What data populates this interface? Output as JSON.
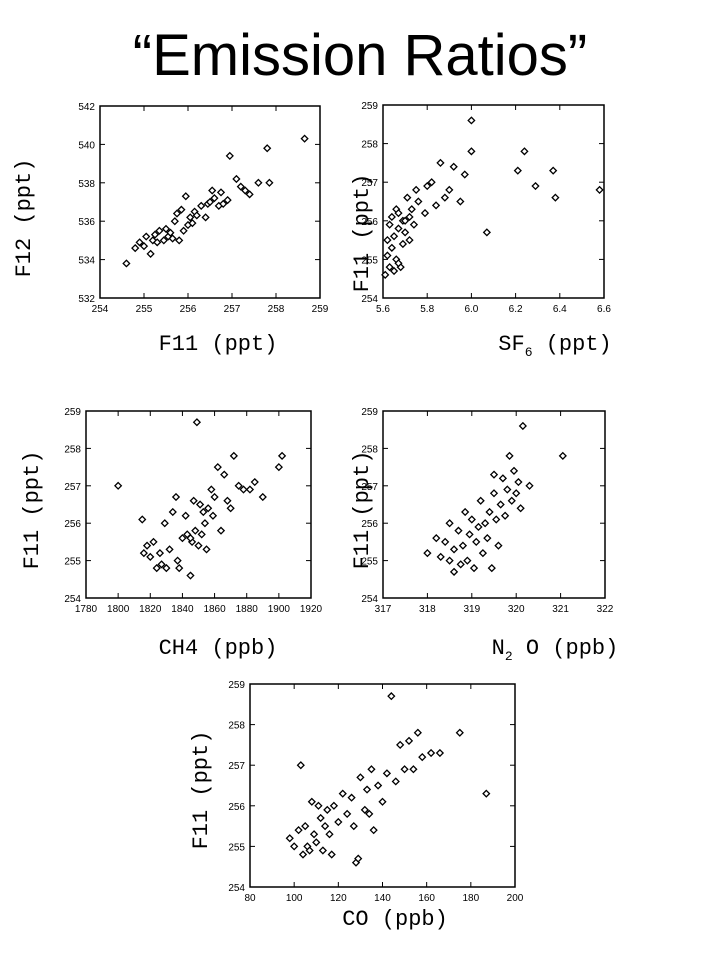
{
  "title": "“Emission Ratios”",
  "chart_data": [
    {
      "type": "scatter",
      "xlabel": "F11 (ppt)",
      "ylabel": "F12 (ppt)",
      "xlim": [
        254,
        259
      ],
      "ylim": [
        532,
        542
      ],
      "xticks": [
        "254",
        "255",
        "256",
        "257",
        "258",
        "259"
      ],
      "yticks": [
        "532",
        "534",
        "536",
        "538",
        "540",
        "542"
      ],
      "points": [
        [
          254.6,
          533.8
        ],
        [
          254.8,
          534.6
        ],
        [
          254.9,
          534.9
        ],
        [
          255.0,
          534.7
        ],
        [
          255.05,
          535.2
        ],
        [
          255.15,
          534.3
        ],
        [
          255.2,
          535.0
        ],
        [
          255.3,
          534.9
        ],
        [
          255.35,
          535.5
        ],
        [
          255.45,
          535.0
        ],
        [
          255.5,
          535.6
        ],
        [
          255.55,
          535.2
        ],
        [
          255.6,
          535.4
        ],
        [
          255.65,
          535.1
        ],
        [
          255.7,
          536.0
        ],
        [
          255.75,
          536.4
        ],
        [
          255.8,
          535.0
        ],
        [
          255.9,
          535.5
        ],
        [
          256.0,
          535.8
        ],
        [
          256.05,
          536.2
        ],
        [
          256.1,
          535.9
        ],
        [
          256.15,
          536.5
        ],
        [
          256.2,
          536.3
        ],
        [
          256.3,
          536.8
        ],
        [
          256.4,
          536.2
        ],
        [
          256.45,
          536.9
        ],
        [
          256.5,
          537.0
        ],
        [
          256.6,
          537.2
        ],
        [
          256.7,
          536.8
        ],
        [
          256.75,
          537.5
        ],
        [
          256.8,
          536.9
        ],
        [
          256.9,
          537.1
        ],
        [
          256.95,
          539.4
        ],
        [
          257.1,
          538.2
        ],
        [
          257.2,
          537.8
        ],
        [
          257.3,
          537.6
        ],
        [
          257.4,
          537.4
        ],
        [
          257.6,
          538.0
        ],
        [
          257.8,
          539.8
        ],
        [
          257.85,
          538.0
        ],
        [
          258.65,
          540.3
        ],
        [
          255.95,
          537.3
        ],
        [
          256.55,
          537.6
        ],
        [
          255.25,
          535.3
        ],
        [
          255.85,
          536.6
        ]
      ]
    },
    {
      "type": "scatter",
      "xlabel": "SF",
      "xlabel_sub": "6",
      "xlabel_unit": "(ppt)",
      "ylabel": "F11 (ppt)",
      "xlim": [
        5.6,
        6.6
      ],
      "ylim": [
        254,
        259
      ],
      "xticks": [
        "5.6",
        "5.8",
        "6.0",
        "6.2",
        "6.4",
        "6.6"
      ],
      "yticks": [
        "254",
        "255",
        "256",
        "257",
        "258",
        "259"
      ],
      "points": [
        [
          5.61,
          254.6
        ],
        [
          5.62,
          255.1
        ],
        [
          5.62,
          255.5
        ],
        [
          5.63,
          254.8
        ],
        [
          5.63,
          255.9
        ],
        [
          5.64,
          255.3
        ],
        [
          5.64,
          256.1
        ],
        [
          5.65,
          254.7
        ],
        [
          5.65,
          255.6
        ],
        [
          5.66,
          256.3
        ],
        [
          5.66,
          255.0
        ],
        [
          5.67,
          255.8
        ],
        [
          5.67,
          256.2
        ],
        [
          5.68,
          254.8
        ],
        [
          5.69,
          255.4
        ],
        [
          5.69,
          256.0
        ],
        [
          5.7,
          255.7
        ],
        [
          5.71,
          256.6
        ],
        [
          5.72,
          255.5
        ],
        [
          5.73,
          256.3
        ],
        [
          5.74,
          255.9
        ],
        [
          5.75,
          256.8
        ],
        [
          5.76,
          256.5
        ],
        [
          5.79,
          256.2
        ],
        [
          5.8,
          256.9
        ],
        [
          5.82,
          257.0
        ],
        [
          5.84,
          256.4
        ],
        [
          5.86,
          257.5
        ],
        [
          5.88,
          256.6
        ],
        [
          5.9,
          256.8
        ],
        [
          5.92,
          257.4
        ],
        [
          5.95,
          256.5
        ],
        [
          5.97,
          257.2
        ],
        [
          6.0,
          258.6
        ],
        [
          6.0,
          257.8
        ],
        [
          6.07,
          255.7
        ],
        [
          6.21,
          257.3
        ],
        [
          6.24,
          257.8
        ],
        [
          6.29,
          256.9
        ],
        [
          6.37,
          257.3
        ],
        [
          6.38,
          256.6
        ],
        [
          6.58,
          256.8
        ],
        [
          5.67,
          254.9
        ],
        [
          5.7,
          256.0
        ],
        [
          5.72,
          256.1
        ]
      ]
    },
    {
      "type": "scatter",
      "xlabel": "CH4 (ppb)",
      "ylabel": "F11 (ppt)",
      "xlim": [
        1780,
        1920
      ],
      "ylim": [
        254,
        259
      ],
      "xticks": [
        "1780",
        "1800",
        "1820",
        "1840",
        "1860",
        "1880",
        "1900",
        "1920"
      ],
      "yticks": [
        "254",
        "255",
        "256",
        "257",
        "258",
        "259"
      ],
      "points": [
        [
          1800,
          257.0
        ],
        [
          1815,
          256.1
        ],
        [
          1816,
          255.2
        ],
        [
          1818,
          255.4
        ],
        [
          1820,
          255.1
        ],
        [
          1822,
          255.5
        ],
        [
          1824,
          254.8
        ],
        [
          1826,
          255.2
        ],
        [
          1827,
          254.9
        ],
        [
          1829,
          256.0
        ],
        [
          1830,
          254.8
        ],
        [
          1832,
          255.3
        ],
        [
          1834,
          256.3
        ],
        [
          1836,
          256.7
        ],
        [
          1837,
          255.0
        ],
        [
          1838,
          254.8
        ],
        [
          1840,
          255.6
        ],
        [
          1842,
          256.2
        ],
        [
          1843,
          255.7
        ],
        [
          1845,
          254.6
        ],
        [
          1846,
          255.5
        ],
        [
          1847,
          256.6
        ],
        [
          1848,
          255.8
        ],
        [
          1849,
          258.7
        ],
        [
          1850,
          255.4
        ],
        [
          1851,
          256.5
        ],
        [
          1852,
          255.7
        ],
        [
          1854,
          256.0
        ],
        [
          1855,
          255.3
        ],
        [
          1856,
          256.4
        ],
        [
          1858,
          256.9
        ],
        [
          1859,
          256.2
        ],
        [
          1860,
          256.7
        ],
        [
          1862,
          257.5
        ],
        [
          1864,
          255.8
        ],
        [
          1866,
          257.3
        ],
        [
          1868,
          256.6
        ],
        [
          1870,
          256.4
        ],
        [
          1872,
          257.8
        ],
        [
          1875,
          257.0
        ],
        [
          1878,
          256.9
        ],
        [
          1882,
          256.9
        ],
        [
          1885,
          257.1
        ],
        [
          1890,
          256.7
        ],
        [
          1900,
          257.5
        ],
        [
          1902,
          257.8
        ],
        [
          1845,
          255.6
        ],
        [
          1853,
          256.3
        ]
      ]
    },
    {
      "type": "scatter",
      "xlabel": "N",
      "xlabel_sub": "2",
      "xlabel_unit": "O (ppb)",
      "ylabel": "F11 (ppt)",
      "xlim": [
        317,
        322
      ],
      "ylim": [
        254,
        259
      ],
      "xticks": [
        "317",
        "318",
        "319",
        "320",
        "321",
        "322"
      ],
      "yticks": [
        "254",
        "255",
        "256",
        "257",
        "258",
        "259"
      ],
      "points": [
        [
          318.0,
          255.2
        ],
        [
          318.2,
          255.6
        ],
        [
          318.3,
          255.1
        ],
        [
          318.4,
          255.5
        ],
        [
          318.5,
          256.0
        ],
        [
          318.6,
          255.3
        ],
        [
          318.6,
          254.7
        ],
        [
          318.7,
          255.8
        ],
        [
          318.75,
          254.9
        ],
        [
          318.8,
          255.4
        ],
        [
          318.85,
          256.3
        ],
        [
          318.9,
          255.0
        ],
        [
          318.95,
          255.7
        ],
        [
          319.0,
          256.1
        ],
        [
          319.05,
          254.8
        ],
        [
          319.1,
          255.5
        ],
        [
          319.15,
          255.9
        ],
        [
          319.2,
          256.6
        ],
        [
          319.25,
          255.2
        ],
        [
          319.3,
          256.0
        ],
        [
          319.35,
          255.6
        ],
        [
          319.4,
          256.3
        ],
        [
          319.45,
          254.8
        ],
        [
          319.5,
          256.8
        ],
        [
          319.55,
          256.1
        ],
        [
          319.6,
          255.4
        ],
        [
          319.65,
          256.5
        ],
        [
          319.7,
          257.2
        ],
        [
          319.75,
          256.2
        ],
        [
          319.8,
          256.9
        ],
        [
          319.85,
          257.8
        ],
        [
          319.9,
          256.6
        ],
        [
          319.95,
          257.4
        ],
        [
          320.0,
          256.8
        ],
        [
          320.05,
          257.1
        ],
        [
          320.1,
          256.4
        ],
        [
          320.15,
          258.6
        ],
        [
          320.3,
          257.0
        ],
        [
          321.05,
          257.8
        ],
        [
          319.5,
          257.3
        ],
        [
          318.5,
          255.0
        ]
      ]
    },
    {
      "type": "scatter",
      "xlabel": "CO (ppb)",
      "ylabel": "F11 (ppt)",
      "xlim": [
        80,
        200
      ],
      "ylim": [
        254,
        259
      ],
      "xticks": [
        "80",
        "100",
        "120",
        "140",
        "160",
        "180",
        "200"
      ],
      "yticks": [
        "254",
        "255",
        "256",
        "257",
        "258",
        "259"
      ],
      "points": [
        [
          98,
          255.2
        ],
        [
          100,
          255.0
        ],
        [
          102,
          255.4
        ],
        [
          103,
          257.0
        ],
        [
          104,
          254.8
        ],
        [
          105,
          255.5
        ],
        [
          106,
          255.0
        ],
        [
          107,
          254.9
        ],
        [
          108,
          256.1
        ],
        [
          109,
          255.3
        ],
        [
          110,
          255.1
        ],
        [
          111,
          256.0
        ],
        [
          112,
          255.7
        ],
        [
          113,
          254.9
        ],
        [
          114,
          255.5
        ],
        [
          115,
          255.9
        ],
        [
          116,
          255.3
        ],
        [
          117,
          254.8
        ],
        [
          118,
          256.0
        ],
        [
          120,
          255.6
        ],
        [
          122,
          256.3
        ],
        [
          124,
          255.8
        ],
        [
          126,
          256.2
        ],
        [
          127,
          255.5
        ],
        [
          128,
          254.6
        ],
        [
          129,
          254.7
        ],
        [
          130,
          256.7
        ],
        [
          132,
          255.9
        ],
        [
          133,
          256.4
        ],
        [
          134,
          255.8
        ],
        [
          135,
          256.9
        ],
        [
          136,
          255.4
        ],
        [
          138,
          256.5
        ],
        [
          140,
          256.1
        ],
        [
          142,
          256.8
        ],
        [
          144,
          258.7
        ],
        [
          146,
          256.6
        ],
        [
          148,
          257.5
        ],
        [
          150,
          256.9
        ],
        [
          152,
          257.6
        ],
        [
          154,
          256.9
        ],
        [
          156,
          257.8
        ],
        [
          158,
          257.2
        ],
        [
          162,
          257.3
        ],
        [
          166,
          257.3
        ],
        [
          175,
          257.8
        ],
        [
          187,
          256.3
        ]
      ]
    }
  ]
}
